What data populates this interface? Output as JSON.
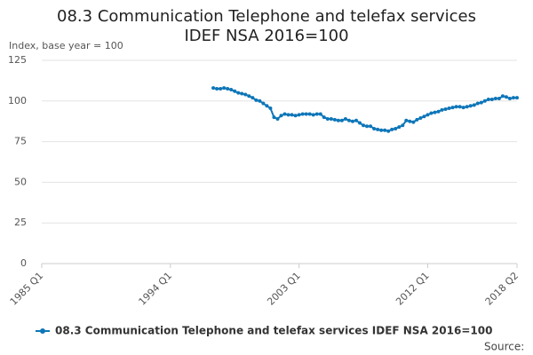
{
  "chart_data": {
    "type": "line",
    "title": "08.3 Communication Telephone and telefax services IDEF NSA 2016=100",
    "y_label": "Index, base year = 100",
    "source_label": "Source:",
    "categories": [
      "1985 Q1",
      null,
      null,
      null,
      null,
      null,
      null,
      null,
      null,
      null,
      null,
      null,
      null,
      null,
      null,
      null,
      null,
      null,
      null,
      null,
      null,
      null,
      null,
      null,
      null,
      null,
      null,
      null,
      null,
      null,
      null,
      null,
      null,
      null,
      null,
      null,
      "1994 Q1",
      null,
      null,
      null,
      null,
      null,
      null,
      null,
      null,
      null,
      null,
      null,
      null,
      null,
      null,
      null,
      null,
      null,
      null,
      null,
      null,
      null,
      null,
      null,
      null,
      null,
      null,
      null,
      null,
      null,
      null,
      null,
      null,
      null,
      null,
      null,
      "2003 Q1",
      null,
      null,
      null,
      null,
      null,
      null,
      null,
      null,
      null,
      null,
      null,
      null,
      null,
      null,
      null,
      null,
      null,
      null,
      null,
      null,
      null,
      null,
      null,
      null,
      null,
      null,
      null,
      null,
      null,
      null,
      null,
      null,
      null,
      null,
      null,
      "2012 Q1",
      null,
      null,
      null,
      null,
      null,
      null,
      null,
      null,
      null,
      null,
      null,
      null,
      null,
      null,
      null,
      null,
      null,
      null,
      null,
      null,
      null,
      null,
      null,
      null,
      "2018 Q2"
    ],
    "series": [
      {
        "name": "08.3 Communication Telephone and telefax services IDEF NSA 2016=100",
        "color": "#0e76b8",
        "values": [
          null,
          null,
          null,
          null,
          null,
          null,
          null,
          null,
          null,
          null,
          null,
          null,
          null,
          null,
          null,
          null,
          null,
          null,
          null,
          null,
          null,
          null,
          null,
          null,
          null,
          null,
          null,
          null,
          null,
          null,
          null,
          null,
          null,
          null,
          null,
          null,
          null,
          null,
          null,
          null,
          null,
          null,
          null,
          null,
          null,
          null,
          null,
          null,
          108,
          107.5,
          107.5,
          108,
          107.5,
          107,
          106,
          105,
          104.5,
          104,
          103,
          102,
          100.5,
          100,
          98.5,
          97,
          95.5,
          90,
          89,
          91,
          92,
          91.5,
          91.5,
          91,
          91.5,
          92,
          92,
          92,
          91.5,
          92,
          92,
          90,
          89,
          89,
          88.5,
          88,
          88,
          89,
          88,
          87.5,
          88,
          86.5,
          85,
          84.5,
          84.5,
          83,
          82.5,
          82,
          82,
          81.5,
          82.5,
          83,
          84,
          85,
          88,
          87.5,
          87,
          88.5,
          89.5,
          90.5,
          91.5,
          92.5,
          93,
          93.5,
          94.5,
          95,
          95.5,
          96,
          96.5,
          96.5,
          96,
          96.5,
          97,
          97.5,
          98.5,
          99,
          100,
          101,
          101,
          101.5,
          101.5,
          103,
          102.5,
          101.5,
          102,
          102
        ]
      }
    ],
    "ylim": [
      0,
      125
    ],
    "yticks": [
      0,
      25,
      50,
      75,
      100,
      125
    ],
    "grid": true
  }
}
